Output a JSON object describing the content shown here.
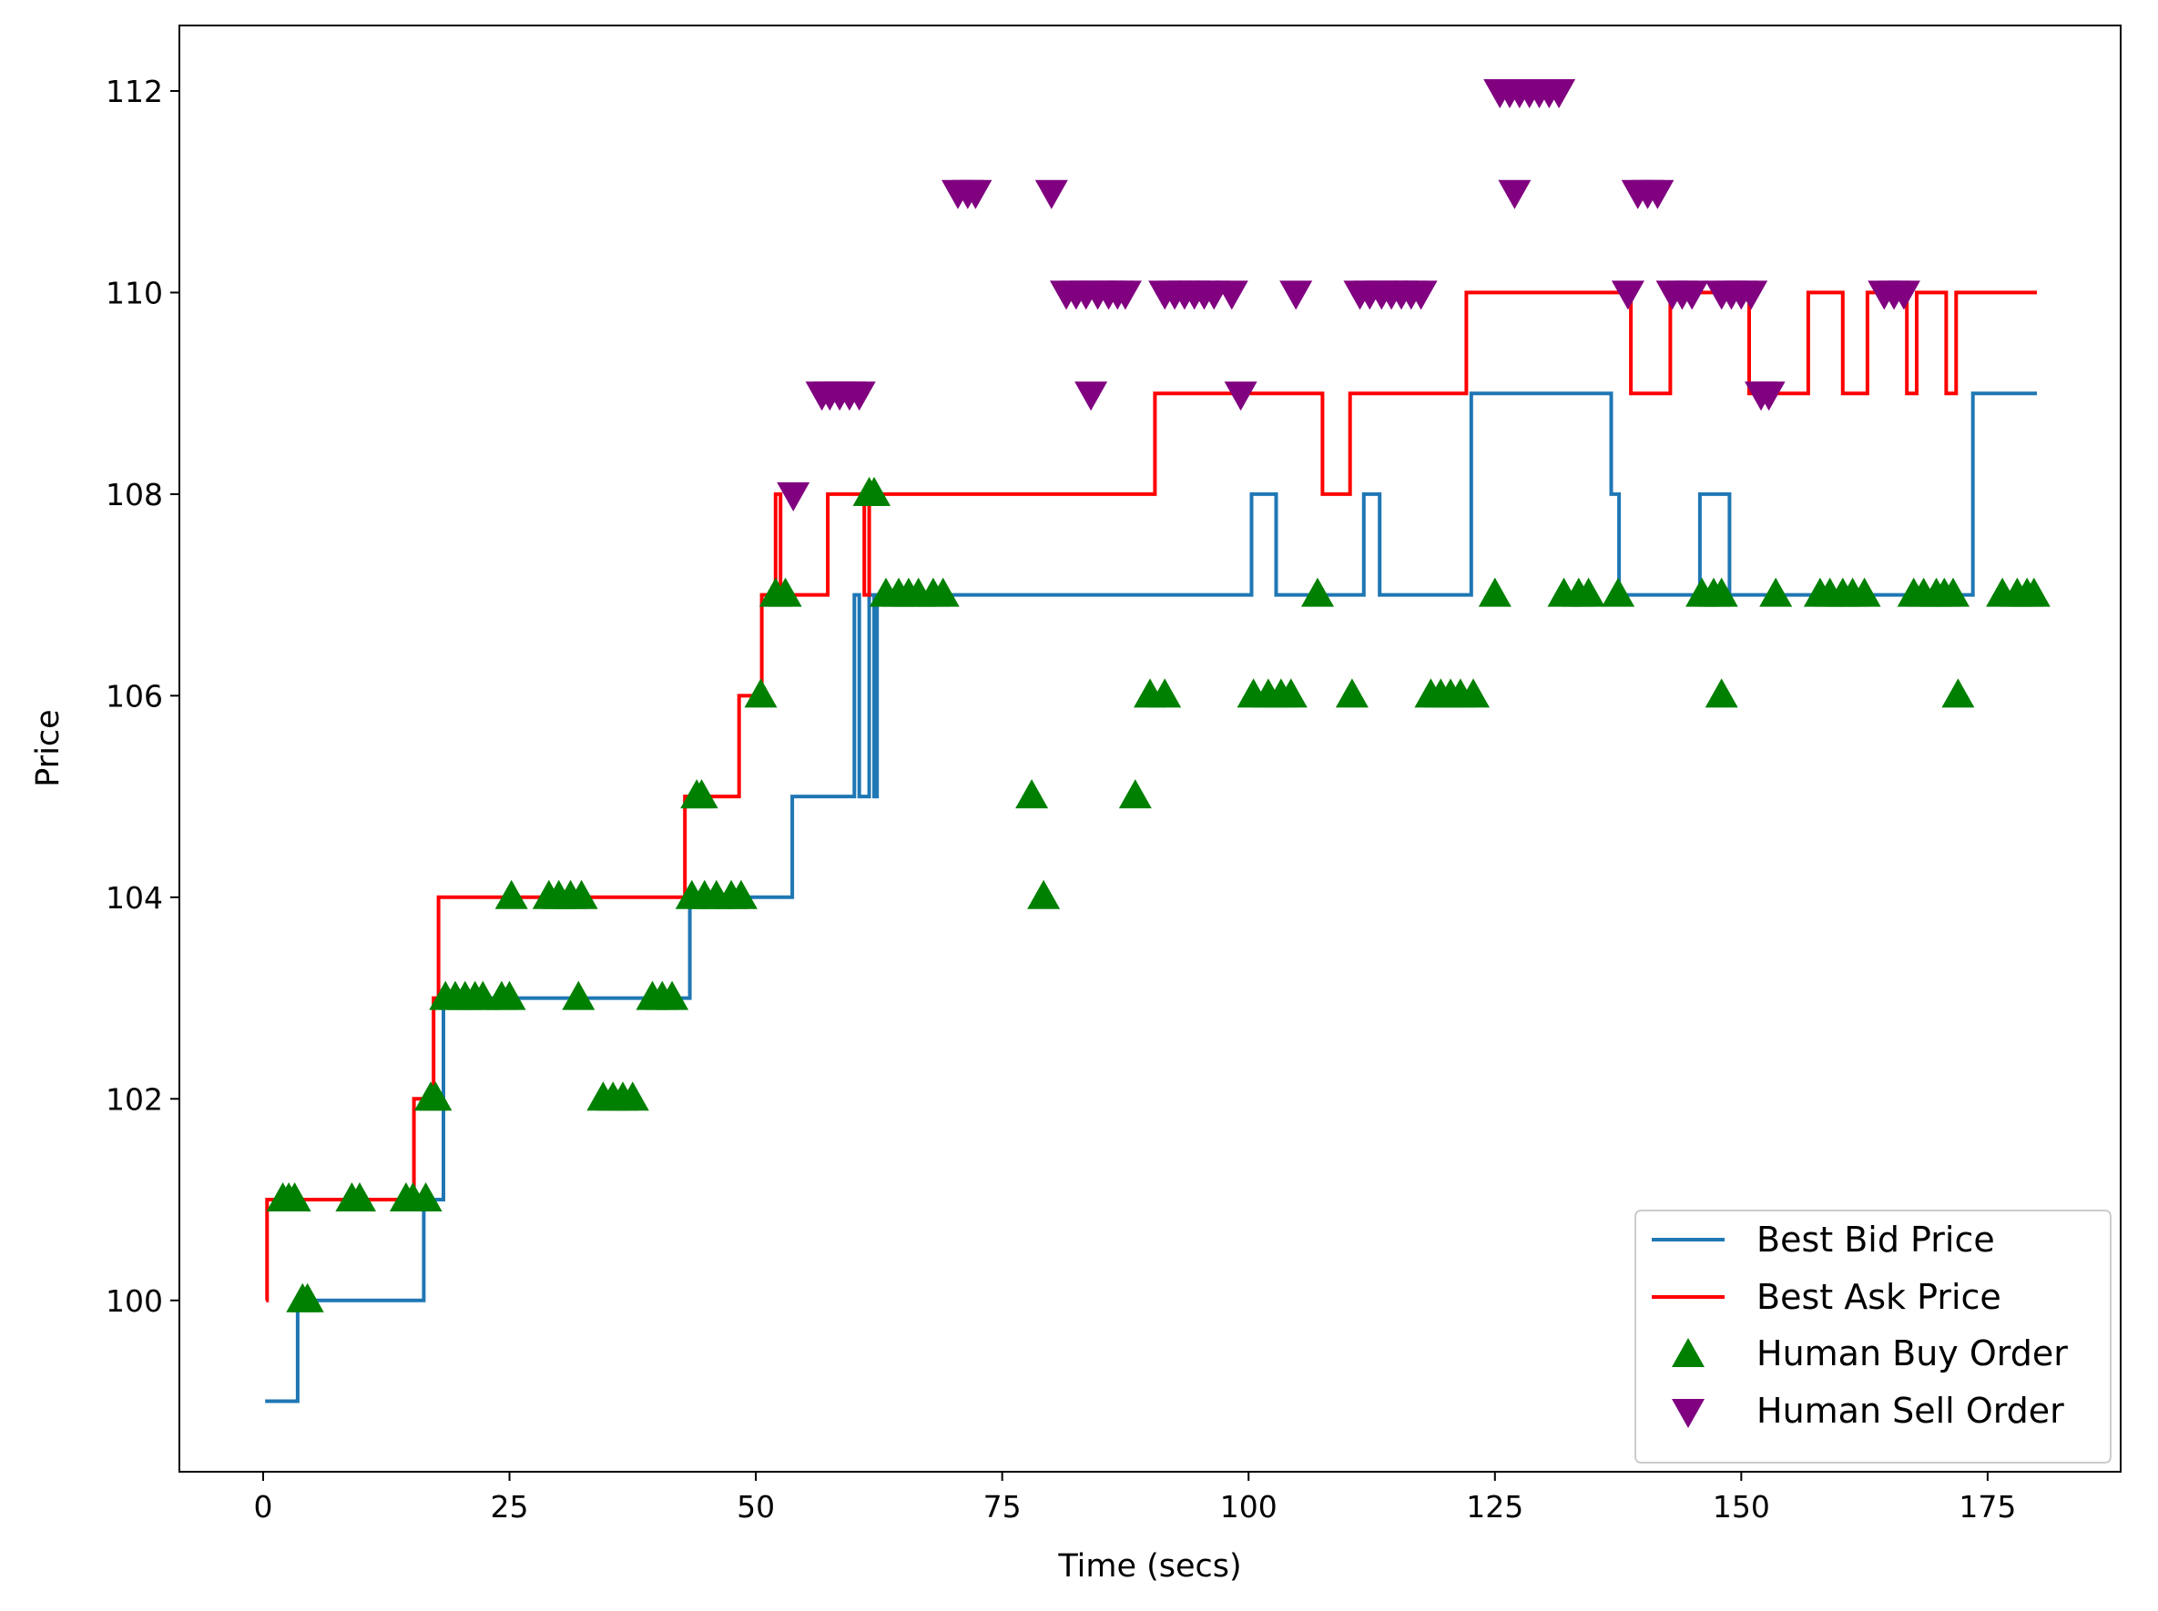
{
  "chart_data": {
    "type": "line",
    "xlabel": "Time (secs)",
    "ylabel": "Price",
    "xlim": [
      -8.5,
      188.5
    ],
    "ylim": [
      98.3,
      112.65
    ],
    "xticks": [
      0,
      25,
      50,
      75,
      100,
      125,
      150,
      175
    ],
    "yticks": [
      100,
      102,
      104,
      106,
      108,
      110,
      112
    ],
    "grid": false,
    "legend_position": "bottom-right",
    "legend": [
      "Best Bid Price",
      "Best Ask Price",
      "Human Buy Order",
      "Human Sell Order"
    ],
    "colors": {
      "bid": "#1f77b4",
      "ask": "#ff0000",
      "buy": "#008000",
      "sell": "#800080"
    },
    "series": [
      {
        "name": "Best Bid Price",
        "step": "post",
        "points": [
          [
            0.2,
            99
          ],
          [
            3.5,
            100
          ],
          [
            16.3,
            101
          ],
          [
            18.3,
            103
          ],
          [
            43.3,
            104
          ],
          [
            53.7,
            105
          ],
          [
            60.0,
            107
          ],
          [
            60.5,
            105
          ],
          [
            61.5,
            107
          ],
          [
            62.0,
            105
          ],
          [
            62.3,
            107
          ],
          [
            100.3,
            108
          ],
          [
            102.8,
            107
          ],
          [
            111.7,
            108
          ],
          [
            113.3,
            107
          ],
          [
            122.6,
            109
          ],
          [
            136.8,
            108
          ],
          [
            137.6,
            107
          ],
          [
            145.8,
            108
          ],
          [
            148.8,
            107
          ],
          [
            173.5,
            109
          ],
          [
            180.0,
            109
          ]
        ]
      },
      {
        "name": "Best Ask Price",
        "step": "post",
        "points": [
          [
            0.3,
            100
          ],
          [
            0.4,
            101
          ],
          [
            15.3,
            102
          ],
          [
            17.3,
            103
          ],
          [
            17.8,
            104
          ],
          [
            42.8,
            105
          ],
          [
            48.3,
            106
          ],
          [
            50.6,
            107
          ],
          [
            52.0,
            108
          ],
          [
            52.5,
            107
          ],
          [
            57.3,
            108
          ],
          [
            61.0,
            107
          ],
          [
            61.5,
            108
          ],
          [
            90.5,
            109
          ],
          [
            107.5,
            108
          ],
          [
            110.3,
            109
          ],
          [
            122.1,
            110
          ],
          [
            138.8,
            109
          ],
          [
            142.8,
            110
          ],
          [
            150.8,
            109
          ],
          [
            156.8,
            110
          ],
          [
            160.3,
            109
          ],
          [
            162.8,
            110
          ],
          [
            166.8,
            109
          ],
          [
            167.8,
            110
          ],
          [
            170.8,
            109
          ],
          [
            171.8,
            110
          ],
          [
            180.0,
            110
          ]
        ]
      },
      {
        "name": "Human Buy Order",
        "marker": "triangle-up",
        "points": [
          [
            2.0,
            101
          ],
          [
            2.6,
            101
          ],
          [
            3.2,
            101
          ],
          [
            4.0,
            100
          ],
          [
            4.5,
            100
          ],
          [
            9.0,
            101
          ],
          [
            9.8,
            101
          ],
          [
            14.5,
            101
          ],
          [
            15.2,
            101
          ],
          [
            16.5,
            101
          ],
          [
            17.0,
            102
          ],
          [
            17.5,
            102
          ],
          [
            18.5,
            103
          ],
          [
            19.5,
            103
          ],
          [
            20.5,
            103
          ],
          [
            21.5,
            103
          ],
          [
            22.3,
            103
          ],
          [
            24.2,
            103
          ],
          [
            25.0,
            103
          ],
          [
            25.2,
            104
          ],
          [
            29.0,
            104
          ],
          [
            30.0,
            104
          ],
          [
            31.2,
            104
          ],
          [
            32.3,
            104
          ],
          [
            32.0,
            103
          ],
          [
            34.5,
            102
          ],
          [
            35.5,
            102
          ],
          [
            36.5,
            102
          ],
          [
            37.5,
            102
          ],
          [
            39.5,
            103
          ],
          [
            40.5,
            103
          ],
          [
            41.5,
            103
          ],
          [
            43.5,
            104
          ],
          [
            44.0,
            105
          ],
          [
            44.5,
            105
          ],
          [
            44.8,
            104
          ],
          [
            46.0,
            104
          ],
          [
            47.5,
            104
          ],
          [
            48.5,
            104
          ],
          [
            50.5,
            106
          ],
          [
            52.0,
            107
          ],
          [
            53.0,
            107
          ],
          [
            61.5,
            108
          ],
          [
            62.0,
            108
          ],
          [
            63.2,
            107
          ],
          [
            64.5,
            107
          ],
          [
            65.5,
            107
          ],
          [
            66.5,
            107
          ],
          [
            68.0,
            107
          ],
          [
            69.0,
            107
          ],
          [
            78.0,
            105
          ],
          [
            79.2,
            104
          ],
          [
            88.5,
            105
          ],
          [
            90.0,
            106
          ],
          [
            91.5,
            106
          ],
          [
            100.5,
            106
          ],
          [
            102.0,
            106
          ],
          [
            103.3,
            106
          ],
          [
            104.3,
            106
          ],
          [
            107.0,
            107
          ],
          [
            110.5,
            106
          ],
          [
            118.5,
            106
          ],
          [
            119.5,
            106
          ],
          [
            120.5,
            106
          ],
          [
            121.5,
            106
          ],
          [
            122.8,
            106
          ],
          [
            125.0,
            107
          ],
          [
            132.0,
            107
          ],
          [
            133.5,
            107
          ],
          [
            134.5,
            107
          ],
          [
            137.5,
            107
          ],
          [
            146.0,
            107
          ],
          [
            147.2,
            107
          ],
          [
            148.0,
            107
          ],
          [
            148.0,
            106
          ],
          [
            153.5,
            107
          ],
          [
            158.0,
            107
          ],
          [
            159.0,
            107
          ],
          [
            160.3,
            107
          ],
          [
            161.3,
            107
          ],
          [
            162.5,
            107
          ],
          [
            167.5,
            107
          ],
          [
            168.5,
            107
          ],
          [
            169.8,
            107
          ],
          [
            170.6,
            107
          ],
          [
            171.5,
            107
          ],
          [
            172.0,
            106
          ],
          [
            176.5,
            107
          ],
          [
            178.0,
            107
          ],
          [
            179.0,
            107
          ],
          [
            179.7,
            107
          ]
        ]
      },
      {
        "name": "Human Sell Order",
        "marker": "triangle-down",
        "points": [
          [
            53.8,
            108
          ],
          [
            56.7,
            109
          ],
          [
            57.5,
            109
          ],
          [
            58.5,
            109
          ],
          [
            59.5,
            109
          ],
          [
            60.5,
            109
          ],
          [
            70.5,
            111
          ],
          [
            71.5,
            111
          ],
          [
            72.3,
            111
          ],
          [
            80.0,
            111
          ],
          [
            81.5,
            110
          ],
          [
            82.5,
            110
          ],
          [
            83.5,
            110
          ],
          [
            84.0,
            109
          ],
          [
            84.7,
            110
          ],
          [
            85.8,
            110
          ],
          [
            86.7,
            110
          ],
          [
            87.5,
            110
          ],
          [
            91.5,
            110
          ],
          [
            92.5,
            110
          ],
          [
            93.5,
            110
          ],
          [
            94.5,
            110
          ],
          [
            95.5,
            110
          ],
          [
            96.5,
            110
          ],
          [
            98.3,
            110
          ],
          [
            99.2,
            109
          ],
          [
            104.8,
            110
          ],
          [
            111.3,
            110
          ],
          [
            112.3,
            110
          ],
          [
            113.5,
            110
          ],
          [
            114.5,
            110
          ],
          [
            115.5,
            110
          ],
          [
            116.5,
            110
          ],
          [
            117.5,
            110
          ],
          [
            125.5,
            112
          ],
          [
            126.5,
            112
          ],
          [
            127.0,
            111
          ],
          [
            127.5,
            112
          ],
          [
            128.5,
            112
          ],
          [
            129.5,
            112
          ],
          [
            130.5,
            112
          ],
          [
            131.5,
            112
          ],
          [
            138.5,
            110
          ],
          [
            139.5,
            111
          ],
          [
            140.5,
            111
          ],
          [
            141.5,
            111
          ],
          [
            143.0,
            110
          ],
          [
            144.0,
            110
          ],
          [
            145.0,
            110
          ],
          [
            148.0,
            110
          ],
          [
            149.0,
            110
          ],
          [
            150.0,
            110
          ],
          [
            151.0,
            110
          ],
          [
            152.0,
            109
          ],
          [
            152.8,
            109
          ],
          [
            164.5,
            110
          ],
          [
            165.5,
            110
          ],
          [
            166.5,
            110
          ]
        ]
      }
    ]
  }
}
